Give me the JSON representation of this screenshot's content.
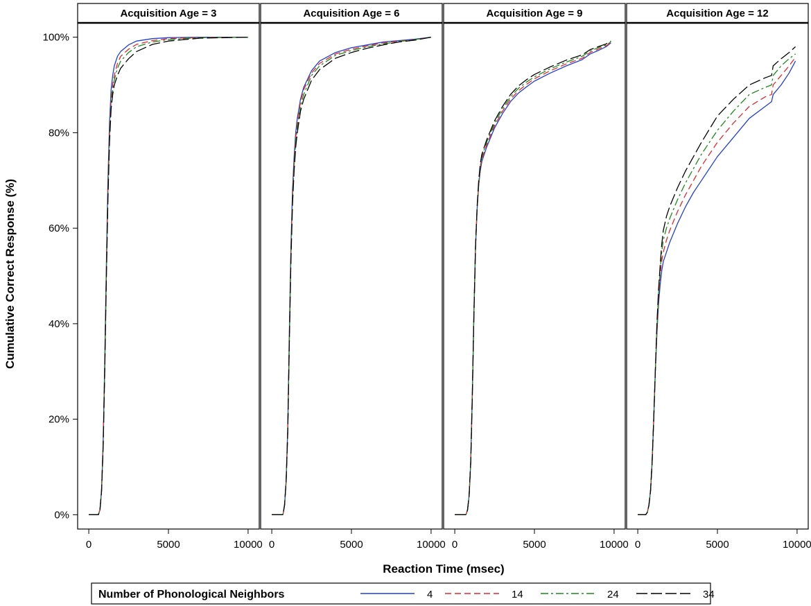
{
  "chart_data": {
    "type": "line",
    "xlabel": "Reaction Time (msec)",
    "ylabel": "Cumulative Correct Response (%)",
    "xlim": [
      -700,
      10700
    ],
    "ylim": [
      -3,
      103
    ],
    "x_ticks": [
      0,
      5000,
      10000
    ],
    "x_tick_labels": [
      "0",
      "5000",
      "10000"
    ],
    "y_ticks": [
      0,
      20,
      40,
      60,
      80,
      100
    ],
    "y_tick_labels": [
      "0%",
      "20%",
      "40%",
      "60%",
      "80%",
      "100%"
    ],
    "grid": false,
    "legend": {
      "title": "Number of Phonological Neighbors",
      "placement": "bottom",
      "entries": [
        {
          "label": "4",
          "color": "#1f3fd6",
          "dash": "solid"
        },
        {
          "label": "14",
          "color": "#e3262d",
          "dash": "dash"
        },
        {
          "label": "24",
          "color": "#1a8a1a",
          "dash": "dashdot"
        },
        {
          "label": "34",
          "color": "#000000",
          "dash": "longdash"
        }
      ]
    },
    "panels": [
      {
        "title": "Acquisition Age = 3",
        "series": [
          {
            "name": "4",
            "x": [
              0,
              600,
              700,
              800,
              900,
              1000,
              1100,
              1200,
              1300,
              1400,
              1500,
              1600,
              1800,
              2000,
              2500,
              3000,
              4000,
              5000,
              7000,
              10000
            ],
            "y": [
              0,
              0,
              1,
              5,
              15,
              32,
              52,
              70,
              82,
              89,
              92,
              94,
              96,
              97,
              98.4,
              99.2,
              99.7,
              99.9,
              100,
              100
            ]
          },
          {
            "name": "14",
            "x": [
              0,
              600,
              700,
              800,
              900,
              1000,
              1100,
              1200,
              1300,
              1400,
              1500,
              1600,
              1800,
              2000,
              2500,
              3000,
              4000,
              5000,
              7000,
              10000
            ],
            "y": [
              0,
              0,
              1,
              5,
              15,
              31,
              51,
              68,
              80,
              87,
              90,
              92,
              94.5,
              96,
              97.5,
              98.5,
              99.3,
              99.7,
              99.95,
              100
            ]
          },
          {
            "name": "24",
            "x": [
              0,
              600,
              700,
              800,
              900,
              1000,
              1100,
              1200,
              1300,
              1400,
              1500,
              1600,
              1800,
              2000,
              2500,
              3000,
              4000,
              5000,
              7000,
              10000
            ],
            "y": [
              0,
              0,
              1,
              5,
              14,
              30,
              50,
              67,
              79,
              86,
              89,
              91,
              93.5,
              95,
              96.8,
              98,
              99,
              99.5,
              99.9,
              100
            ]
          },
          {
            "name": "34",
            "x": [
              0,
              600,
              700,
              800,
              900,
              1000,
              1100,
              1200,
              1300,
              1400,
              1500,
              1600,
              1800,
              2000,
              2500,
              3000,
              4000,
              5000,
              7000,
              10000
            ],
            "y": [
              0,
              0,
              1,
              5,
              14,
              30,
              49,
              66,
              78,
              85,
              88,
              90,
              92,
              93.5,
              95.5,
              97,
              98.5,
              99.2,
              99.8,
              100
            ]
          }
        ]
      },
      {
        "title": "Acquisition Age = 6",
        "series": [
          {
            "name": "4",
            "x": [
              0,
              700,
              800,
              900,
              1000,
              1100,
              1200,
              1300,
              1400,
              1500,
              1600,
              1800,
              2000,
              2500,
              3000,
              4000,
              5000,
              6000,
              7000,
              8000,
              9000,
              10000
            ],
            "y": [
              0,
              0,
              2,
              7,
              18,
              38,
              56,
              68,
              75,
              80,
              83,
              87,
              89.5,
              93,
              95,
              96.8,
              97.8,
              98.4,
              99,
              99.3,
              99.6,
              100
            ]
          },
          {
            "name": "14",
            "x": [
              0,
              700,
              800,
              900,
              1000,
              1100,
              1200,
              1300,
              1400,
              1500,
              1600,
              1800,
              2000,
              2500,
              3000,
              4000,
              5000,
              6000,
              7000,
              8000,
              9000,
              10000
            ],
            "y": [
              0,
              0,
              2,
              7,
              18,
              37,
              55,
              67,
              74,
              79,
              82,
              86.5,
              89,
              92.5,
              94.5,
              96.5,
              97.5,
              98.2,
              98.8,
              99.2,
              99.5,
              100
            ]
          },
          {
            "name": "24",
            "x": [
              0,
              700,
              800,
              900,
              1000,
              1100,
              1200,
              1300,
              1400,
              1500,
              1600,
              1800,
              2000,
              2500,
              3000,
              4000,
              5000,
              6000,
              7000,
              8000,
              9000,
              10000
            ],
            "y": [
              0,
              0,
              2,
              7,
              17,
              36,
              54,
              66,
              73,
              78,
              81,
              85.5,
              88,
              92,
              94,
              96.2,
              97.2,
              98,
              98.6,
              99.1,
              99.5,
              100
            ]
          },
          {
            "name": "34",
            "x": [
              0,
              700,
              800,
              900,
              1000,
              1100,
              1200,
              1300,
              1400,
              1500,
              1600,
              1800,
              2000,
              2500,
              3000,
              4000,
              5000,
              6000,
              7000,
              8000,
              9000,
              10000
            ],
            "y": [
              0,
              0,
              2,
              7,
              17,
              36,
              53,
              65,
              72,
              77,
              80,
              84.5,
              87,
              91,
              93.2,
              95.6,
              96.8,
              97.7,
              98.4,
              99,
              99.4,
              100
            ]
          }
        ]
      },
      {
        "title": "Acquisition Age = 9",
        "series": [
          {
            "name": "4",
            "x": [
              0,
              700,
              800,
              900,
              1000,
              1100,
              1200,
              1300,
              1400,
              1500,
              1600,
              1700,
              1800,
              2000,
              2500,
              3000,
              3500,
              4000,
              4500,
              5000,
              6000,
              7000,
              8000,
              8500,
              9000,
              9500,
              9800
            ],
            "y": [
              0,
              0,
              1,
              4,
              11,
              25,
              42,
              56,
              64,
              69,
              72,
              74,
              75,
              77,
              81,
              84,
              86.5,
              88.3,
              89.6,
              90.8,
              92.5,
              94,
              95.3,
              96.5,
              97.2,
              98,
              98.8
            ]
          },
          {
            "name": "14",
            "x": [
              0,
              700,
              800,
              900,
              1000,
              1100,
              1200,
              1300,
              1400,
              1500,
              1600,
              1700,
              1800,
              2000,
              2500,
              3000,
              3500,
              4000,
              4500,
              5000,
              6000,
              7000,
              8000,
              8500,
              9000,
              9500,
              9800
            ],
            "y": [
              0,
              0,
              1,
              4,
              11,
              25,
              42,
              56,
              64,
              69,
              72.5,
              74.5,
              75.5,
              77.5,
              81.5,
              84.5,
              87,
              88.8,
              90.1,
              91.3,
              93,
              94.4,
              95.6,
              96.8,
              97.5,
              98.2,
              98.9
            ]
          },
          {
            "name": "24",
            "x": [
              0,
              700,
              800,
              900,
              1000,
              1100,
              1200,
              1300,
              1400,
              1500,
              1600,
              1700,
              1800,
              2000,
              2500,
              3000,
              3500,
              4000,
              4500,
              5000,
              6000,
              7000,
              8000,
              8500,
              9000,
              9500,
              9800
            ],
            "y": [
              0,
              0,
              1,
              4,
              11,
              25,
              42,
              56,
              64,
              69.5,
              73,
              75,
              76,
              78,
              82,
              85,
              87.5,
              89.3,
              90.6,
              91.7,
              93.4,
              94.8,
              96,
              97.1,
              97.8,
              98.4,
              99
            ]
          },
          {
            "name": "34",
            "x": [
              0,
              700,
              800,
              900,
              1000,
              1100,
              1200,
              1300,
              1400,
              1500,
              1600,
              1700,
              1800,
              2000,
              2500,
              3000,
              3500,
              4000,
              4500,
              5000,
              6000,
              7000,
              8000,
              8500,
              9000,
              9500,
              9800
            ],
            "y": [
              0,
              0,
              1,
              4,
              11,
              25,
              42,
              56,
              64.5,
              70,
              73.5,
              75.5,
              76.5,
              78.5,
              82.5,
              85.5,
              88,
              89.8,
              91.1,
              92.2,
              93.8,
              95.2,
              96.3,
              97.4,
              98,
              98.6,
              99.2
            ]
          }
        ]
      },
      {
        "title": "Acquisition Age = 12",
        "series": [
          {
            "name": "4",
            "x": [
              0,
              500,
              600,
              700,
              800,
              900,
              1000,
              1100,
              1200,
              1300,
              1400,
              1500,
              1600,
              1800,
              2000,
              2500,
              3000,
              3500,
              4000,
              5000,
              6000,
              7000,
              8000,
              8400,
              8500,
              9000,
              9500,
              9900
            ],
            "y": [
              0,
              0,
              0.5,
              2,
              5,
              11,
              20,
              30,
              38,
              44,
              48,
              51,
              53,
              55,
              57,
              61,
              64.5,
              67.5,
              70,
              75,
              79,
              83,
              85.5,
              86.5,
              88,
              90,
              92.5,
              95
            ]
          },
          {
            "name": "14",
            "x": [
              0,
              500,
              600,
              700,
              800,
              900,
              1000,
              1100,
              1200,
              1300,
              1400,
              1500,
              1600,
              1800,
              2000,
              2500,
              3000,
              3500,
              4000,
              5000,
              6000,
              7000,
              8000,
              8400,
              8500,
              9000,
              9500,
              9900
            ],
            "y": [
              0,
              0,
              0.5,
              2,
              5,
              11,
              20,
              30,
              38,
              45,
              50,
              53,
              55,
              57.5,
              59.5,
              63.5,
              67,
              70,
              73,
              78,
              82,
              85.5,
              87.5,
              88,
              90,
              92,
              94,
              95.8
            ]
          },
          {
            "name": "24",
            "x": [
              0,
              500,
              600,
              700,
              800,
              900,
              1000,
              1100,
              1200,
              1300,
              1400,
              1500,
              1600,
              1800,
              2000,
              2500,
              3000,
              3500,
              4000,
              5000,
              6000,
              7000,
              8000,
              8400,
              8500,
              9000,
              9500,
              9900
            ],
            "y": [
              0,
              0,
              0.5,
              2,
              5,
              11,
              20,
              30,
              39,
              46,
              51,
              55,
              57.5,
              60,
              62,
              66,
              69.5,
              72.5,
              75.5,
              80.5,
              84.5,
              88,
              89.5,
              90,
              92,
              94,
              95.5,
              96.5
            ]
          },
          {
            "name": "34",
            "x": [
              0,
              500,
              600,
              700,
              800,
              900,
              1000,
              1100,
              1200,
              1300,
              1400,
              1500,
              1600,
              1800,
              2000,
              2500,
              3000,
              3500,
              4000,
              5000,
              6000,
              7000,
              8000,
              8400,
              8500,
              9000,
              9500,
              9900
            ],
            "y": [
              0,
              0,
              0.5,
              2,
              5,
              11,
              20,
              30,
              40,
              47,
              52,
              56.5,
              59.5,
              62.5,
              64.5,
              68.5,
              72,
              75,
              78,
              83.5,
              87,
              90,
              91.5,
              92,
              94,
              95.5,
              96.8,
              98
            ]
          }
        ]
      }
    ]
  }
}
